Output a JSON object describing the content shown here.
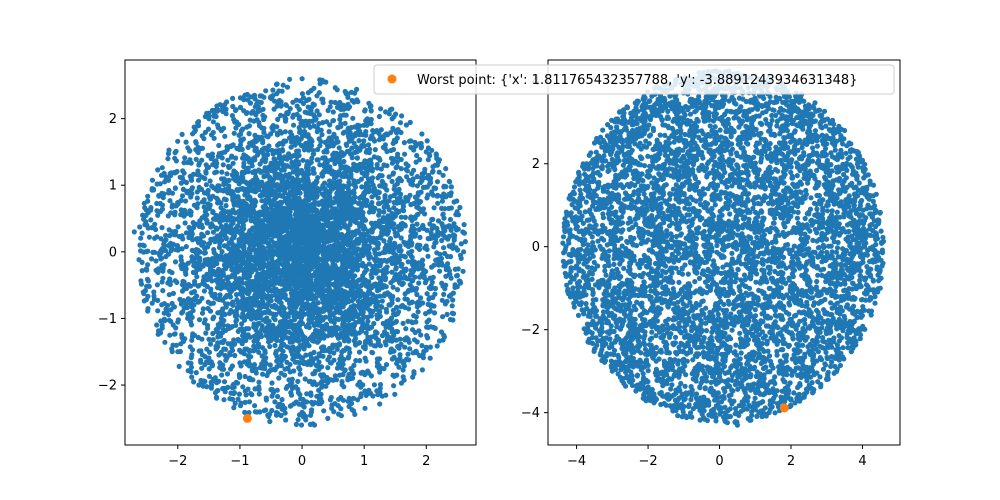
{
  "chart_data": [
    {
      "type": "scatter",
      "name": "left-panel",
      "title": "",
      "xlabel": "",
      "ylabel": "",
      "xlim": [
        -2.85,
        2.8
      ],
      "ylim": [
        -2.9,
        2.88
      ],
      "xticks": [
        -2,
        -1,
        0,
        1,
        2
      ],
      "yticks": [
        -2,
        -1,
        0,
        1,
        2
      ],
      "xtick_labels": [
        "−2",
        "−1",
        "0",
        "1",
        "2"
      ],
      "ytick_labels": [
        "−2",
        "−1",
        "0",
        "1",
        "2"
      ],
      "grid": false,
      "cloud": {
        "shape": "disc",
        "center": [
          0.0,
          0.0
        ],
        "radius_x": 2.65,
        "radius_y": 2.6,
        "point_count": 6000,
        "density": "dense-center",
        "color": "#1f77b4"
      },
      "series": [
        {
          "name": "",
          "color": "#1f77b4",
          "points": [
            [
              -2.7,
              0.3
            ],
            [
              2.6,
              0.0
            ],
            [
              0.0,
              2.6
            ],
            [
              0.2,
              -2.6
            ],
            [
              -1.5,
              2.0
            ],
            [
              1.8,
              -1.8
            ],
            [
              -2.0,
              -1.5
            ],
            [
              2.0,
              1.5
            ]
          ]
        },
        {
          "name": "Worst point",
          "color": "#ff7f0e",
          "points": [
            [
              -0.88,
              -2.5
            ]
          ]
        }
      ]
    },
    {
      "type": "scatter",
      "name": "right-panel",
      "title": "",
      "xlabel": "",
      "ylabel": "",
      "xlim": [
        -4.8,
        5.05
      ],
      "ylim": [
        -4.78,
        4.5
      ],
      "xticks": [
        -4,
        -2,
        0,
        2,
        4
      ],
      "yticks": [
        -4,
        -2,
        0,
        2,
        4
      ],
      "xtick_labels": [
        "−4",
        "−2",
        "0",
        "2",
        "4"
      ],
      "ytick_labels": [
        "−4",
        "−2",
        "0",
        "2",
        "4"
      ],
      "grid": false,
      "cloud": {
        "shape": "disc",
        "center": [
          0.1,
          0.0
        ],
        "radius_x": 4.5,
        "radius_y": 4.25,
        "point_count": 6000,
        "density": "uniform",
        "color": "#1f77b4"
      },
      "series": [
        {
          "name": "",
          "color": "#1f77b4",
          "points": [
            [
              -4.3,
              0.0
            ],
            [
              4.5,
              -1.0
            ],
            [
              0.0,
              4.2
            ],
            [
              0.5,
              -4.3
            ],
            [
              -3.5,
              2.5
            ],
            [
              3.5,
              2.8
            ],
            [
              -3.0,
              -3.0
            ],
            [
              3.0,
              -3.2
            ]
          ]
        },
        {
          "name": "Worst point",
          "color": "#ff7f0e",
          "points": [
            [
              1.811765432357788,
              -3.8891243934631348
            ]
          ]
        }
      ]
    }
  ],
  "legend": {
    "placement": "top-right of left panel",
    "label": "Worst point: {'x': 1.811765432357788, 'y': -3.8891243934631348}",
    "marker_color": "#ff7f0e"
  }
}
